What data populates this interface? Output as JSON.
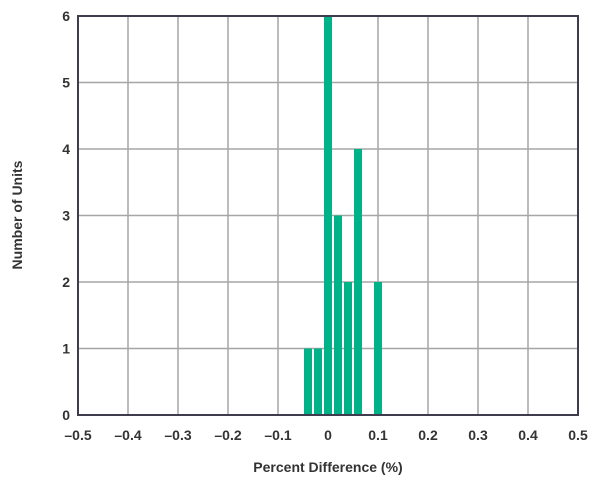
{
  "chart_data": {
    "type": "bar",
    "title": "",
    "xlabel": "Percent Difference (%)",
    "ylabel": "Number of Units",
    "xlim": [
      -0.5,
      0.5
    ],
    "ylim": [
      0,
      6
    ],
    "x_ticks": [
      "–0.5",
      "–0.4",
      "–0.3",
      "–0.2",
      "–0.1",
      "0",
      "0.1",
      "0.2",
      "0.3",
      "0.4",
      "0.5"
    ],
    "x_tick_values": [
      -0.5,
      -0.4,
      -0.3,
      -0.2,
      -0.1,
      0,
      0.1,
      0.2,
      0.3,
      0.4,
      0.5
    ],
    "y_ticks": [
      "0",
      "1",
      "2",
      "3",
      "4",
      "5",
      "6"
    ],
    "y_tick_values": [
      0,
      1,
      2,
      3,
      4,
      5,
      6
    ],
    "bin_width": 0.02,
    "bars": [
      {
        "x": -0.04,
        "value": 1
      },
      {
        "x": -0.02,
        "value": 1
      },
      {
        "x": 0.0,
        "value": 6
      },
      {
        "x": 0.02,
        "value": 3
      },
      {
        "x": 0.04,
        "value": 2
      },
      {
        "x": 0.06,
        "value": 4
      },
      {
        "x": 0.1,
        "value": 2
      }
    ],
    "grid": true,
    "bar_color": "#00b287",
    "grid_color": "#a6a6a6",
    "axis_color": "#3d3d4d"
  }
}
